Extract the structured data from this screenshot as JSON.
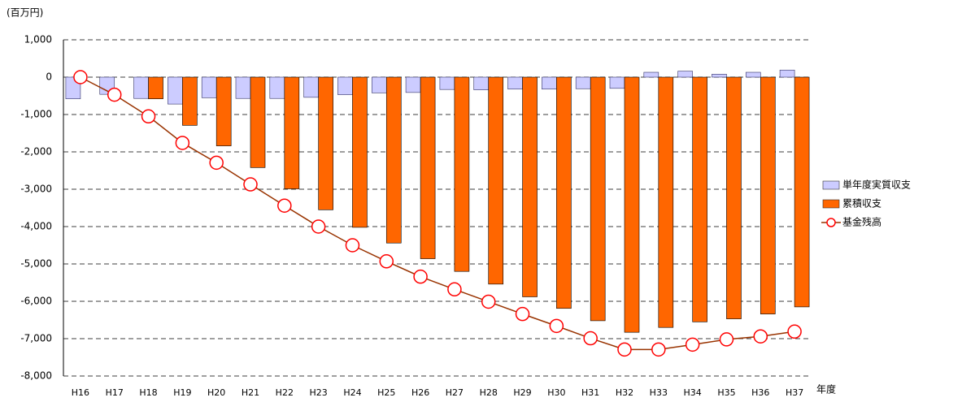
{
  "chart_data": {
    "type": "bar_line",
    "y_unit_label": "(百万円)",
    "x_label": "年度",
    "categories": [
      "H16",
      "H17",
      "H18",
      "H19",
      "H20",
      "H21",
      "H22",
      "H23",
      "H24",
      "H25",
      "H26",
      "H27",
      "H28",
      "H29",
      "H30",
      "H31",
      "H32",
      "H33",
      "H34",
      "H35",
      "H36",
      "H37"
    ],
    "series": [
      {
        "name": "単年度実質収支",
        "type": "bar",
        "color": "#ccccff",
        "values": [
          -580,
          -460,
          -570,
          -720,
          -550,
          -570,
          -570,
          -540,
          -470,
          -420,
          -410,
          -330,
          -340,
          -320,
          -320,
          -310,
          -300,
          130,
          160,
          80,
          130,
          190
        ]
      },
      {
        "name": "累積収支",
        "type": "bar",
        "color": "#ff6600",
        "values": [
          0,
          0,
          -580,
          -1290,
          -1840,
          -2420,
          -2990,
          -3550,
          -4020,
          -4440,
          -4860,
          -5200,
          -5540,
          -5880,
          -6190,
          -6520,
          -6830,
          -6700,
          -6550,
          -6470,
          -6340,
          -6150
        ]
      },
      {
        "name": "基金残高",
        "type": "line",
        "color": "#993300",
        "values": [
          0,
          -470,
          -1050,
          -1760,
          -2290,
          -2870,
          -3440,
          -4000,
          -4500,
          -4930,
          -5340,
          -5680,
          -6010,
          -6340,
          -6660,
          -6990,
          -7290,
          -7290,
          -7160,
          -7020,
          -6940,
          -6810
        ]
      }
    ],
    "ylim": [
      -8000,
      1000
    ],
    "yticks": [
      {
        "value": 1000,
        "label": "1,000"
      },
      0,
      {
        "value": -1000,
        "label": "-1,000"
      },
      {
        "value": -2000,
        "label": "-2,000"
      },
      {
        "value": -3000,
        "label": "-3,000"
      },
      {
        "value": -4000,
        "label": "-4,000"
      },
      {
        "value": -5000,
        "label": "-5,000"
      },
      {
        "value": -6000,
        "label": "-6,000"
      },
      {
        "value": -7000,
        "label": "-7,000"
      },
      {
        "value": -8000,
        "label": "-8,000"
      }
    ],
    "grid": true,
    "legend": "right"
  }
}
